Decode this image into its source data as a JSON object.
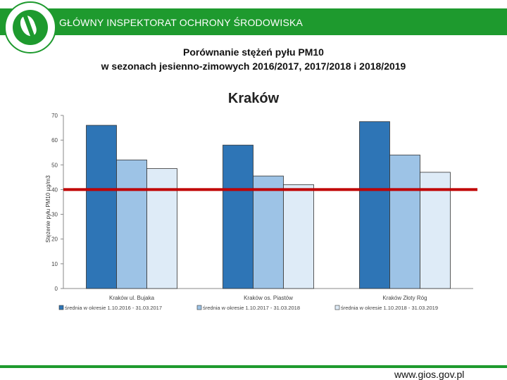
{
  "header": {
    "title": "GŁÓWNY INSPEKTORAT OCHRONY ŚRODOWISKA"
  },
  "slide": {
    "title_line1": "Porównanie stężeń pyłu PM10",
    "title_line2": "w sezonach jesienno-zimowych 2016/2017, 2017/2018 i 2018/2019",
    "footer_url": "www.gios.gov.pl"
  },
  "chart_data": {
    "type": "bar",
    "title": "Kraków",
    "ylabel": "Stężenie pyłu PM10 µg/m3",
    "xlabel": "",
    "ylim": [
      0,
      70
    ],
    "yticks": [
      0,
      10,
      20,
      30,
      40,
      50,
      60,
      70
    ],
    "categories": [
      "Kraków ul. Bujaka",
      "Kraków os. Piastów",
      "Kraków Złoty Róg"
    ],
    "series": [
      {
        "name": "średnia w okresie 1.10.2016 - 31.03.2017",
        "values": [
          66,
          58,
          67.5
        ],
        "color": "#2e75b6"
      },
      {
        "name": "średnia w okresie 1.10.2017 - 31.03.2018",
        "values": [
          52,
          45.5,
          54
        ],
        "color": "#9dc3e6"
      },
      {
        "name": "średnia w okresie 1.10.2018 - 31.03.2019",
        "values": [
          48.5,
          42,
          47
        ],
        "color": "#deebf7"
      }
    ],
    "reference_line": {
      "value": 40,
      "color": "#c00000"
    },
    "legend_position": "bottom",
    "grid": false
  }
}
